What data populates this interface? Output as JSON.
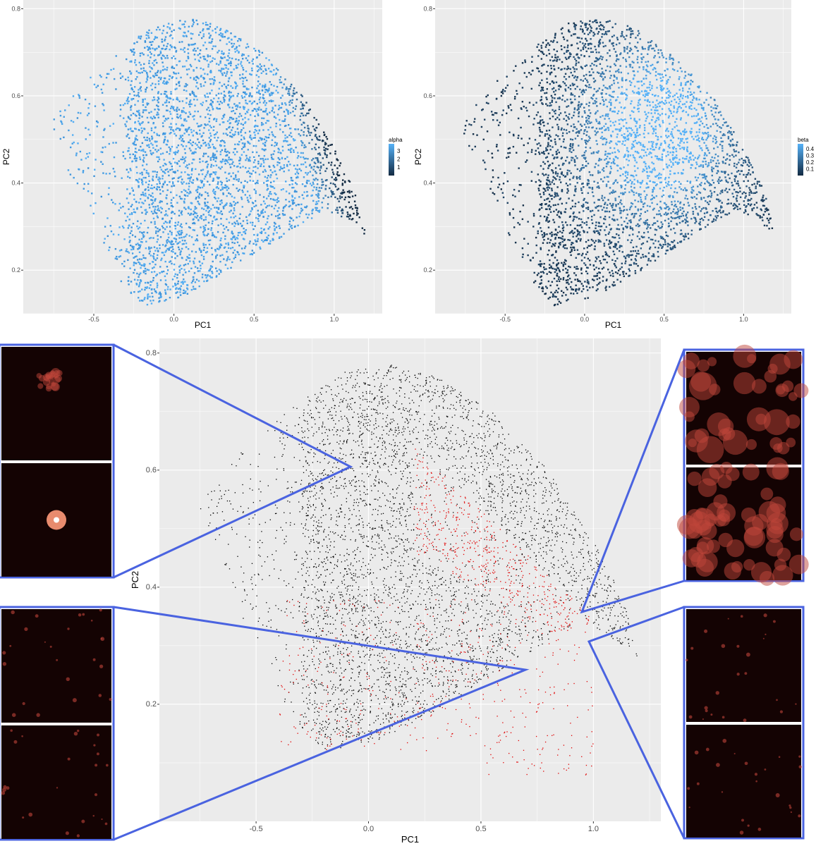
{
  "chart_data": [
    {
      "type": "scatter",
      "xlabel": "PC1",
      "ylabel": "PC2",
      "xlim": [
        -0.94,
        1.3
      ],
      "ylim": [
        0.1,
        0.82
      ],
      "xticks": [
        "-0.5",
        "0.0",
        "0.5",
        "1.0"
      ],
      "yticks": [
        "0.2",
        "0.4",
        "0.6",
        "0.8"
      ],
      "grid": true,
      "legend": {
        "title": "alpha",
        "labels": [
          "3",
          "2",
          "1"
        ],
        "placement": "right",
        "colors": [
          "#56B1F7",
          "#132B43"
        ]
      }
    },
    {
      "type": "scatter",
      "xlabel": "PC1",
      "ylabel": "PC2",
      "xlim": [
        -0.94,
        1.3
      ],
      "ylim": [
        0.1,
        0.82
      ],
      "xticks": [
        "-0.5",
        "0.0",
        "0.5",
        "1.0"
      ],
      "yticks": [
        "0.2",
        "0.4",
        "0.6",
        "0.8"
      ],
      "grid": true,
      "legend": {
        "title": "beta",
        "labels": [
          "0.4",
          "0.3",
          "0.2",
          "0.1"
        ],
        "placement": "right",
        "colors": [
          "#56B1F7",
          "#132B43"
        ]
      }
    },
    {
      "type": "scatter",
      "xlabel": "PC1",
      "ylabel": "PC2",
      "xlim": [
        -0.93,
        1.3
      ],
      "ylim": [
        0.0,
        0.825
      ],
      "xticks": [
        "-0.5",
        "0.0",
        "0.5",
        "1.0"
      ],
      "yticks": [
        "0.2",
        "0.4",
        "0.6",
        "0.8"
      ],
      "grid": true,
      "series_colors": [
        "#000000",
        "#E00000"
      ],
      "inset_border_color": "#4A63E0"
    }
  ]
}
